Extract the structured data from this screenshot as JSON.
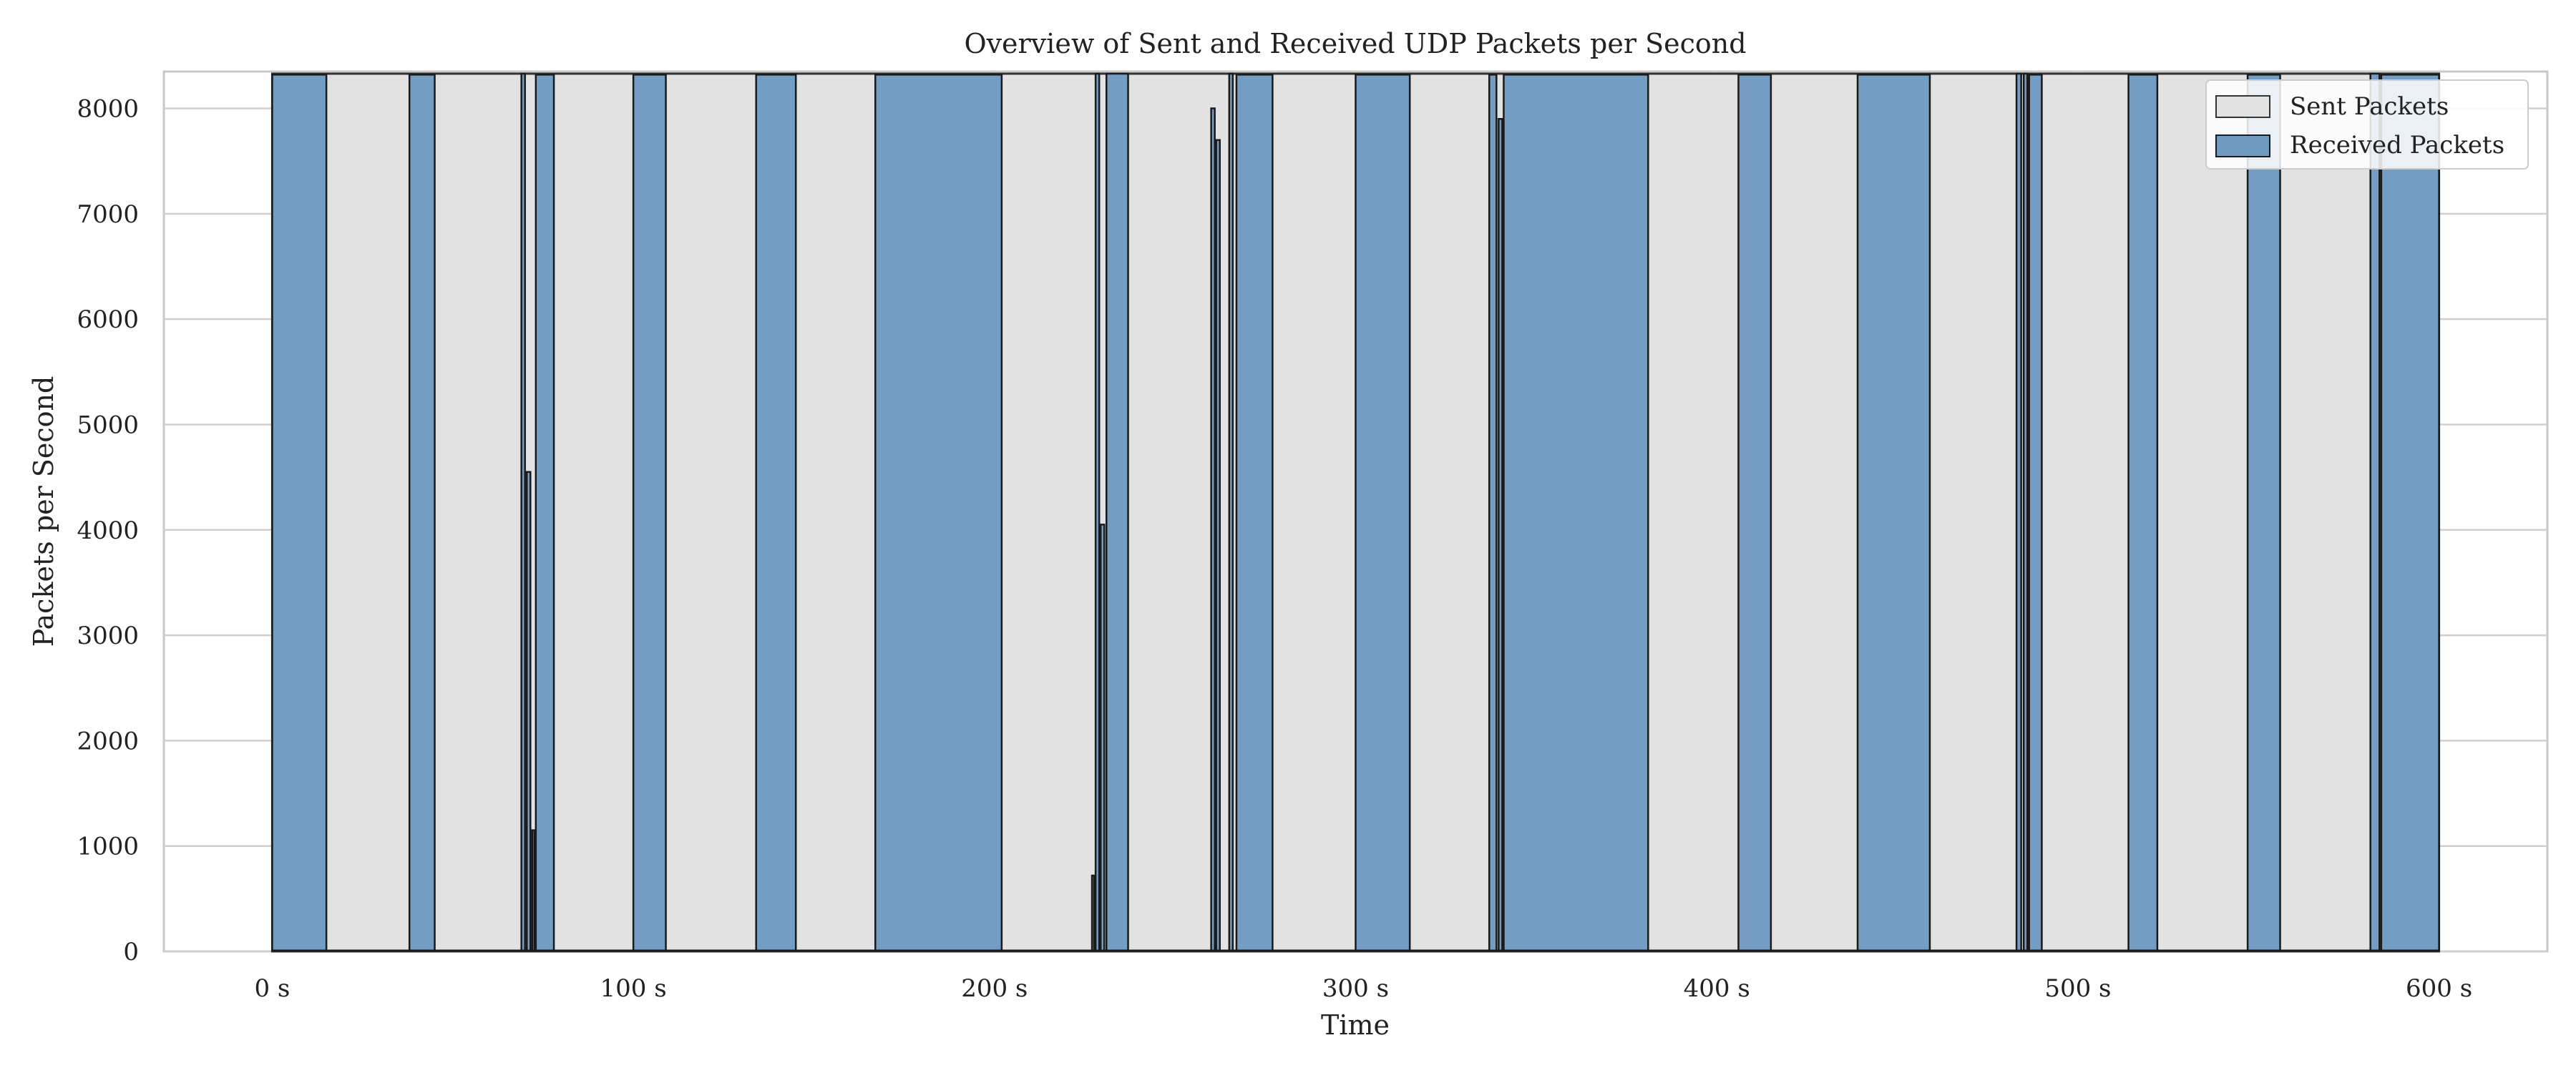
{
  "chart_data": {
    "type": "area",
    "title": "Overview of Sent and Received UDP Packets per Second",
    "xlabel": "Time",
    "ylabel": "Packets per Second",
    "xlim": [
      -30,
      630
    ],
    "ylim": [
      0,
      8350
    ],
    "x_ticks": [
      0,
      100,
      200,
      300,
      400,
      500,
      600
    ],
    "x_tick_labels": [
      "0 s",
      "100 s",
      "200 s",
      "300 s",
      "400 s",
      "500 s",
      "600 s"
    ],
    "y_ticks": [
      0,
      1000,
      2000,
      3000,
      4000,
      5000,
      6000,
      7000,
      8000
    ],
    "y_tick_labels": [
      "0",
      "1000",
      "2000",
      "3000",
      "4000",
      "5000",
      "6000",
      "7000",
      "8000"
    ],
    "grid": true,
    "legend_position": "top-right",
    "series": [
      {
        "name": "Sent Packets",
        "color": "#e2e2e2",
        "edge_color": "#333333",
        "x": [
          0,
          600
        ],
        "y": [
          8330,
          8330
        ]
      },
      {
        "name": "Received Packets",
        "color": "#6f9bc1",
        "edge_color": "#1a1a1a",
        "intervals": [
          {
            "start": 0,
            "end": 15,
            "level": 8320
          },
          {
            "start": 38,
            "end": 45,
            "level": 8320
          },
          {
            "start": 69,
            "end": 70,
            "level": 8330
          },
          {
            "start": 70.5,
            "end": 71.5,
            "level": 4550
          },
          {
            "start": 72,
            "end": 72.6,
            "level": 1150
          },
          {
            "start": 73,
            "end": 78,
            "level": 8320
          },
          {
            "start": 100,
            "end": 109,
            "level": 8320
          },
          {
            "start": 134,
            "end": 145,
            "level": 8320
          },
          {
            "start": 167,
            "end": 202,
            "level": 8320
          },
          {
            "start": 227,
            "end": 227.6,
            "level": 720
          },
          {
            "start": 228,
            "end": 229,
            "level": 8330
          },
          {
            "start": 229.4,
            "end": 230.4,
            "level": 4050
          },
          {
            "start": 231,
            "end": 237,
            "level": 8330
          },
          {
            "start": 260,
            "end": 261,
            "level": 8000
          },
          {
            "start": 261.4,
            "end": 262.4,
            "level": 7700
          },
          {
            "start": 265,
            "end": 266,
            "level": 8330
          },
          {
            "start": 267,
            "end": 277,
            "level": 8320
          },
          {
            "start": 300,
            "end": 315,
            "level": 8320
          },
          {
            "start": 337,
            "end": 339,
            "level": 8320
          },
          {
            "start": 339.6,
            "end": 340.6,
            "level": 7900
          },
          {
            "start": 341,
            "end": 381,
            "level": 8320
          },
          {
            "start": 406,
            "end": 415,
            "level": 8320
          },
          {
            "start": 439,
            "end": 459,
            "level": 8320
          },
          {
            "start": 483,
            "end": 484.3,
            "level": 8330
          },
          {
            "start": 485,
            "end": 486,
            "level": 8330
          },
          {
            "start": 486.5,
            "end": 490,
            "level": 8320
          },
          {
            "start": 514,
            "end": 522,
            "level": 8320
          },
          {
            "start": 547,
            "end": 556,
            "level": 8320
          },
          {
            "start": 581,
            "end": 583.5,
            "level": 8330
          },
          {
            "start": 584,
            "end": 600,
            "level": 8320
          }
        ]
      }
    ]
  }
}
